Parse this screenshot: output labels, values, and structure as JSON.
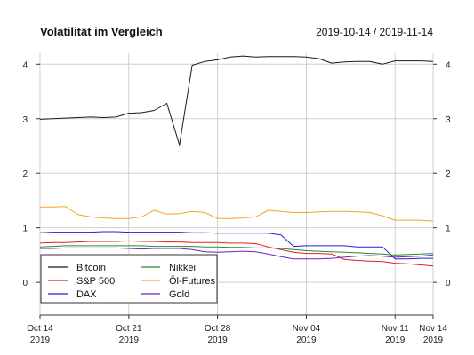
{
  "chart_data": {
    "type": "line",
    "title": "Volatilität im Vergleich",
    "date_range": "2019-10-14 / 2019-11-14",
    "x": [
      "2019-10-14",
      "2019-10-15",
      "2019-10-16",
      "2019-10-17",
      "2019-10-18",
      "2019-10-19",
      "2019-10-20",
      "2019-10-21",
      "2019-10-22",
      "2019-10-23",
      "2019-10-24",
      "2019-10-25",
      "2019-10-26",
      "2019-10-27",
      "2019-10-28",
      "2019-10-29",
      "2019-10-30",
      "2019-10-31",
      "2019-11-01",
      "2019-11-02",
      "2019-11-03",
      "2019-11-04",
      "2019-11-05",
      "2019-11-06",
      "2019-11-07",
      "2019-11-08",
      "2019-11-09",
      "2019-11-10",
      "2019-11-11",
      "2019-11-12",
      "2019-11-13",
      "2019-11-14"
    ],
    "x_ticks": [
      {
        "date": "2019-10-14",
        "line1": "Oct 14",
        "line2": "2019"
      },
      {
        "date": "2019-10-21",
        "line1": "Oct 21",
        "line2": "2019"
      },
      {
        "date": "2019-10-28",
        "line1": "Oct 28",
        "line2": "2019"
      },
      {
        "date": "2019-11-04",
        "line1": "Nov 04",
        "line2": "2019"
      },
      {
        "date": "2019-11-11",
        "line1": "Nov 11",
        "line2": "2019"
      },
      {
        "date": "2019-11-14",
        "line1": "Nov 14",
        "line2": "2019"
      }
    ],
    "y_ticks": [
      0,
      1,
      2,
      3,
      4
    ],
    "ylim": [
      -0.6,
      4.2
    ],
    "grid": true,
    "legend_position": "bottom-left",
    "series": [
      {
        "name": "Bitcoin",
        "color": "#1a1a1a",
        "values": [
          2.99,
          3.0,
          3.01,
          3.02,
          3.03,
          3.02,
          3.03,
          3.1,
          3.11,
          3.15,
          3.28,
          2.52,
          3.98,
          4.05,
          4.08,
          4.13,
          4.15,
          4.13,
          4.14,
          4.14,
          4.14,
          4.13,
          4.1,
          4.02,
          4.04,
          4.05,
          4.05,
          4.0,
          4.06,
          4.06,
          4.06,
          4.05
        ]
      },
      {
        "name": "S&P 500",
        "color": "#e02020",
        "values": [
          0.72,
          0.73,
          0.73,
          0.74,
          0.75,
          0.75,
          0.75,
          0.76,
          0.75,
          0.75,
          0.74,
          0.74,
          0.73,
          0.73,
          0.73,
          0.72,
          0.72,
          0.71,
          0.65,
          0.6,
          0.55,
          0.53,
          0.53,
          0.52,
          0.42,
          0.4,
          0.39,
          0.38,
          0.35,
          0.34,
          0.32,
          0.3
        ]
      },
      {
        "name": "DAX",
        "color": "#2020d0",
        "values": [
          0.91,
          0.92,
          0.92,
          0.92,
          0.92,
          0.93,
          0.93,
          0.92,
          0.92,
          0.92,
          0.92,
          0.92,
          0.91,
          0.91,
          0.9,
          0.9,
          0.9,
          0.9,
          0.9,
          0.87,
          0.66,
          0.67,
          0.67,
          0.67,
          0.67,
          0.65,
          0.65,
          0.65,
          0.43,
          0.43,
          0.44,
          0.44
        ]
      },
      {
        "name": "Nikkei",
        "color": "#2a8a2a",
        "values": [
          0.65,
          0.66,
          0.67,
          0.67,
          0.67,
          0.67,
          0.67,
          0.67,
          0.67,
          0.66,
          0.66,
          0.66,
          0.66,
          0.65,
          0.65,
          0.64,
          0.64,
          0.63,
          0.63,
          0.62,
          0.6,
          0.58,
          0.57,
          0.56,
          0.55,
          0.54,
          0.53,
          0.52,
          0.5,
          0.51,
          0.52,
          0.53
        ]
      },
      {
        "name": "Öl-Futures",
        "color": "#f5a623",
        "values": [
          1.38,
          1.38,
          1.39,
          1.24,
          1.2,
          1.18,
          1.17,
          1.17,
          1.2,
          1.32,
          1.25,
          1.26,
          1.3,
          1.28,
          1.17,
          1.17,
          1.18,
          1.2,
          1.32,
          1.3,
          1.28,
          1.28,
          1.29,
          1.3,
          1.3,
          1.29,
          1.28,
          1.22,
          1.14,
          1.14,
          1.14,
          1.12
        ]
      },
      {
        "name": "Gold",
        "color": "#6a22c8",
        "values": [
          0.62,
          0.62,
          0.63,
          0.63,
          0.63,
          0.63,
          0.63,
          0.62,
          0.61,
          0.62,
          0.62,
          0.62,
          0.6,
          0.56,
          0.55,
          0.56,
          0.57,
          0.56,
          0.52,
          0.47,
          0.43,
          0.43,
          0.43,
          0.44,
          0.46,
          0.48,
          0.49,
          0.48,
          0.46,
          0.47,
          0.48,
          0.5
        ]
      }
    ]
  }
}
